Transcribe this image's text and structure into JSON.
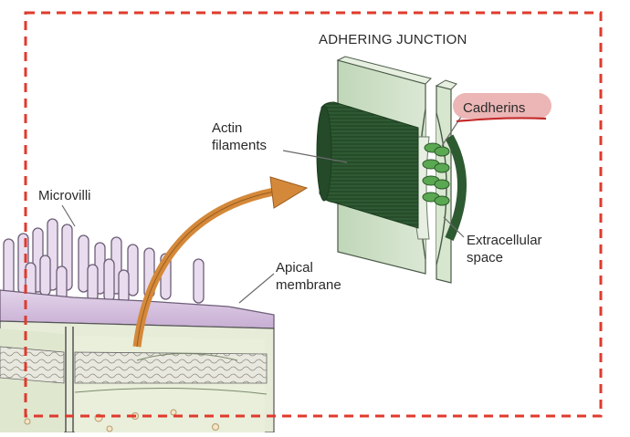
{
  "labels": {
    "title": "ADHERING JUNCTION",
    "actin": [
      "Actin",
      "filaments"
    ],
    "cadherins": "Cadherins",
    "extracellular": [
      "Extracellular",
      "space"
    ],
    "microvilli": "Microvilli",
    "apical": [
      "Apical",
      "membrane"
    ]
  },
  "colors": {
    "frame_dash": "#e03a2c",
    "highlight": "#e9a9a9",
    "underline": "#c42a2a",
    "arrow": "#d4893a",
    "actin": "#2f5a33",
    "membrane": "#c9dcc2",
    "cadherin": "#4d9a48",
    "cell_purple": "#d8c4e0"
  },
  "icons": [
    "curved-arrow-icon"
  ]
}
